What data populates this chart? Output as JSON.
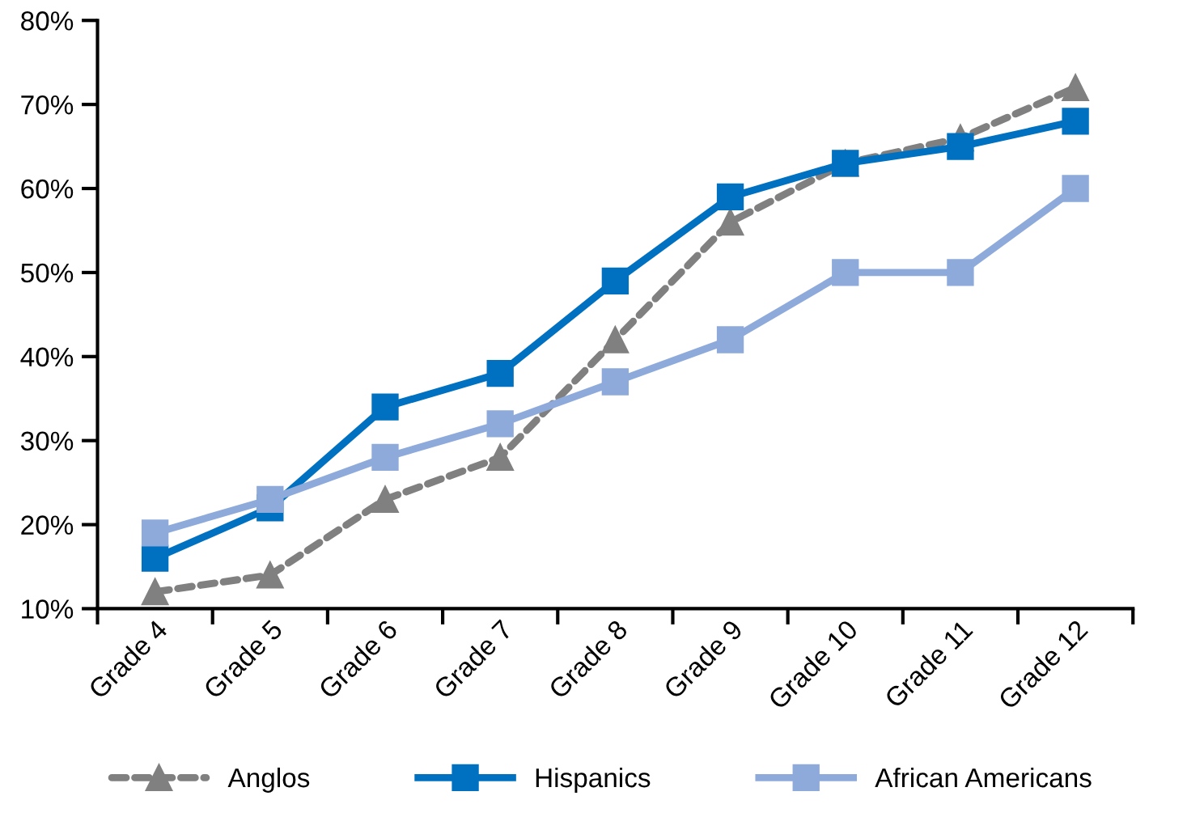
{
  "chart_data": {
    "type": "line",
    "categories": [
      "Grade 4",
      "Grade 5",
      "Grade 6",
      "Grade 7",
      "Grade 8",
      "Grade 9",
      "Grade 10",
      "Grade 11",
      "Grade 12"
    ],
    "series": [
      {
        "name": "Anglos",
        "color": "#808080",
        "values": [
          12,
          14,
          23,
          28,
          42,
          56,
          63,
          66,
          72
        ],
        "marker": "triangle",
        "line_style": "dashed"
      },
      {
        "name": "Hispanics",
        "color": "#0070c0",
        "values": [
          16,
          22,
          34,
          38,
          49,
          59,
          63,
          65,
          68
        ],
        "marker": "square",
        "line_style": "solid"
      },
      {
        "name": "African Americans",
        "color": "#8eaadb",
        "values": [
          19,
          23,
          28,
          32,
          37,
          42,
          50,
          50,
          60
        ],
        "marker": "square",
        "line_style": "solid"
      }
    ],
    "ylim": [
      10,
      80
    ],
    "yticks": [
      {
        "value": 10,
        "label": "10%"
      },
      {
        "value": 20,
        "label": "20%"
      },
      {
        "value": 30,
        "label": "30%"
      },
      {
        "value": 40,
        "label": "40%"
      },
      {
        "value": 50,
        "label": "50%"
      },
      {
        "value": 60,
        "label": "60%"
      },
      {
        "value": 70,
        "label": "70%"
      },
      {
        "value": 80,
        "label": "80%"
      }
    ],
    "grid": false,
    "legend": "bottom"
  }
}
